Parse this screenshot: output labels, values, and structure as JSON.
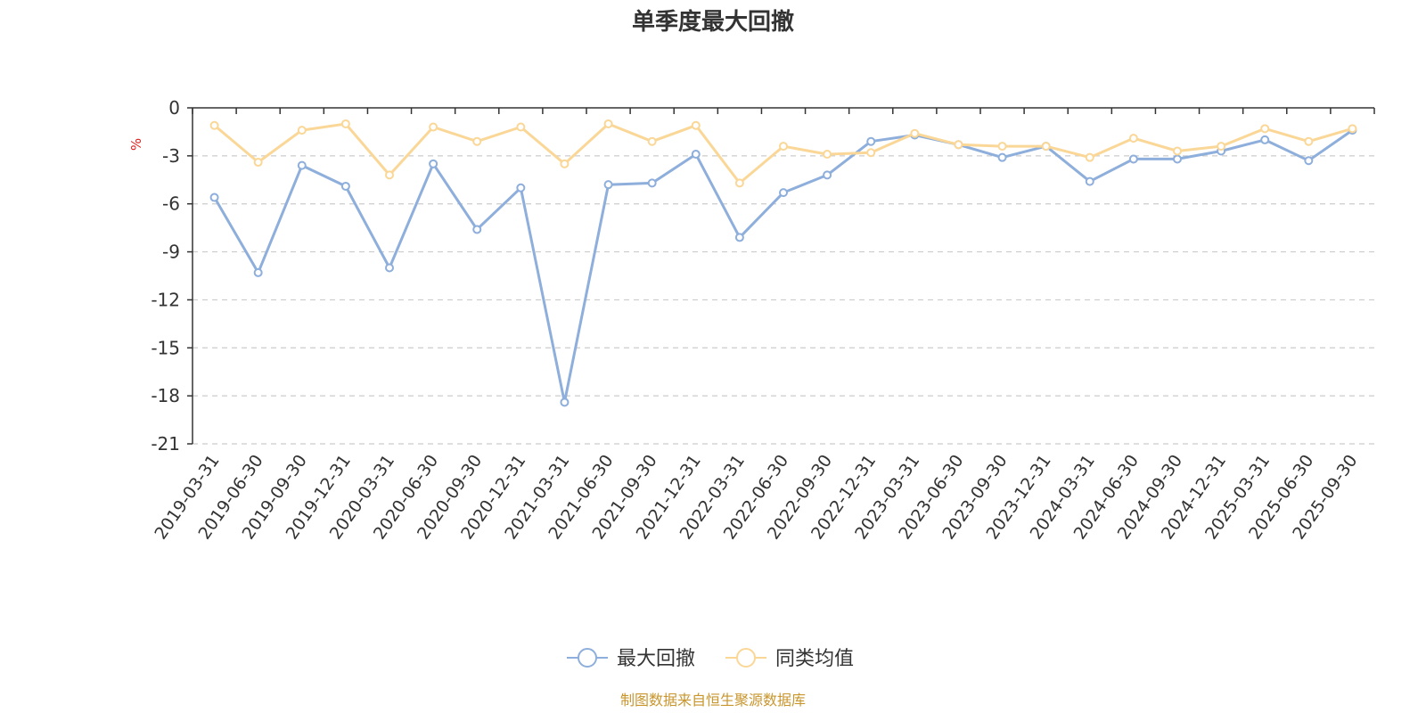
{
  "chart_data": {
    "type": "line",
    "title": "单季度最大回撤",
    "ylabel": "%",
    "ylim": [
      -21,
      0
    ],
    "yticks": [
      0,
      -3,
      -6,
      -9,
      -12,
      -15,
      -18,
      -21
    ],
    "grid": true,
    "legend_position": "bottom",
    "categories": [
      "2019-03-31",
      "2019-06-30",
      "2019-09-30",
      "2019-12-31",
      "2020-03-31",
      "2020-06-30",
      "2020-09-30",
      "2020-12-31",
      "2021-03-31",
      "2021-06-30",
      "2021-09-30",
      "2021-12-31",
      "2022-03-31",
      "2022-06-30",
      "2022-09-30",
      "2022-12-31",
      "2023-03-31",
      "2023-06-30",
      "2023-09-30",
      "2023-12-31",
      "2024-03-31",
      "2024-06-30",
      "2024-09-30",
      "2024-12-31",
      "2025-03-31",
      "2025-06-30",
      "2025-09-30"
    ],
    "series": [
      {
        "name": "最大回撤",
        "color": "#8eaedb",
        "values": [
          -5.6,
          -10.3,
          -3.6,
          -4.9,
          -10.0,
          -3.5,
          -7.6,
          -5.0,
          -18.4,
          -4.8,
          -4.7,
          -2.9,
          -8.1,
          -5.3,
          -4.2,
          -2.1,
          -1.7,
          -2.3,
          -3.1,
          -2.4,
          -4.6,
          -3.2,
          -3.2,
          -2.7,
          -2.0,
          -3.3,
          -1.4
        ]
      },
      {
        "name": "同类均值",
        "color": "#fad797",
        "values": [
          -1.1,
          -3.4,
          -1.4,
          -1.0,
          -4.2,
          -1.2,
          -2.1,
          -1.2,
          -3.5,
          -1.0,
          -2.1,
          -1.1,
          -4.7,
          -2.4,
          -2.9,
          -2.8,
          -1.6,
          -2.3,
          -2.4,
          -2.4,
          -3.1,
          -1.9,
          -2.7,
          -2.4,
          -1.3,
          -2.1,
          -1.3
        ]
      }
    ]
  },
  "footer": {
    "source": "制图数据来自恒生聚源数据库"
  },
  "colors": {
    "axis": "#333333",
    "grid": "#cccccc",
    "unit": "#e02020",
    "source": "#c8962d"
  }
}
